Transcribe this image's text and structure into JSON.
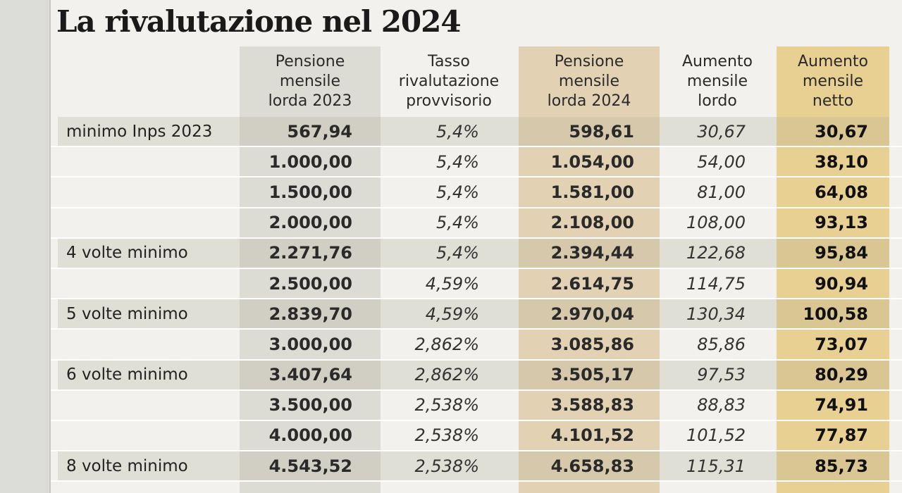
{
  "title": "La rivalutazione nel 2024",
  "headers": [
    "Pensione\nmensile\nlorda 2023",
    "Tasso\nrivalutazione\nprovvisorio",
    "Pensione\nmensile\nlorda 2024",
    "Aumento\nmensile\nlordo",
    "Aumento\nmensile\nnetto"
  ],
  "rows": [
    {
      "label": "minimo Inps 2023",
      "p23": "567,94",
      "tasso": "5,4%",
      "p24": "598,61",
      "lordo": "30,67",
      "netto": "30,67"
    },
    {
      "label": "",
      "p23": "1.000,00",
      "tasso": "5,4%",
      "p24": "1.054,00",
      "lordo": "54,00",
      "netto": "38,10"
    },
    {
      "label": "",
      "p23": "1.500,00",
      "tasso": "5,4%",
      "p24": "1.581,00",
      "lordo": "81,00",
      "netto": "64,08"
    },
    {
      "label": "",
      "p23": "2.000,00",
      "tasso": "5,4%",
      "p24": "2.108,00",
      "lordo": "108,00",
      "netto": "93,13"
    },
    {
      "label": "4 volte minimo",
      "p23": "2.271,76",
      "tasso": "5,4%",
      "p24": "2.394,44",
      "lordo": "122,68",
      "netto": "95,84"
    },
    {
      "label": "",
      "p23": "2.500,00",
      "tasso": "4,59%",
      "p24": "2.614,75",
      "lordo": "114,75",
      "netto": "90,94"
    },
    {
      "label": "5 volte minimo",
      "p23": "2.839,70",
      "tasso": "4,59%",
      "p24": "2.970,04",
      "lordo": "130,34",
      "netto": "100,58"
    },
    {
      "label": "",
      "p23": "3.000,00",
      "tasso": "2,862%",
      "p24": "3.085,86",
      "lordo": "85,86",
      "netto": "73,07"
    },
    {
      "label": "6 volte minimo",
      "p23": "3.407,64",
      "tasso": "2,862%",
      "p24": "3.505,17",
      "lordo": "97,53",
      "netto": "80,29"
    },
    {
      "label": "",
      "p23": "3.500,00",
      "tasso": "2,538%",
      "p24": "3.588,83",
      "lordo": "88,83",
      "netto": "74,91"
    },
    {
      "label": "",
      "p23": "4.000,00",
      "tasso": "2,538%",
      "p24": "4.101,52",
      "lordo": "101,52",
      "netto": "77,87"
    },
    {
      "label": "8 volte minimo",
      "p23": "4.543,52",
      "tasso": "2,538%",
      "p24": "4.658,83",
      "lordo": "115,31",
      "netto": "85,73"
    }
  ],
  "colors": {
    "band_2023": "#dddcd4",
    "band_2024": "#e2d2b3",
    "band_netto": "#e8cf92"
  }
}
